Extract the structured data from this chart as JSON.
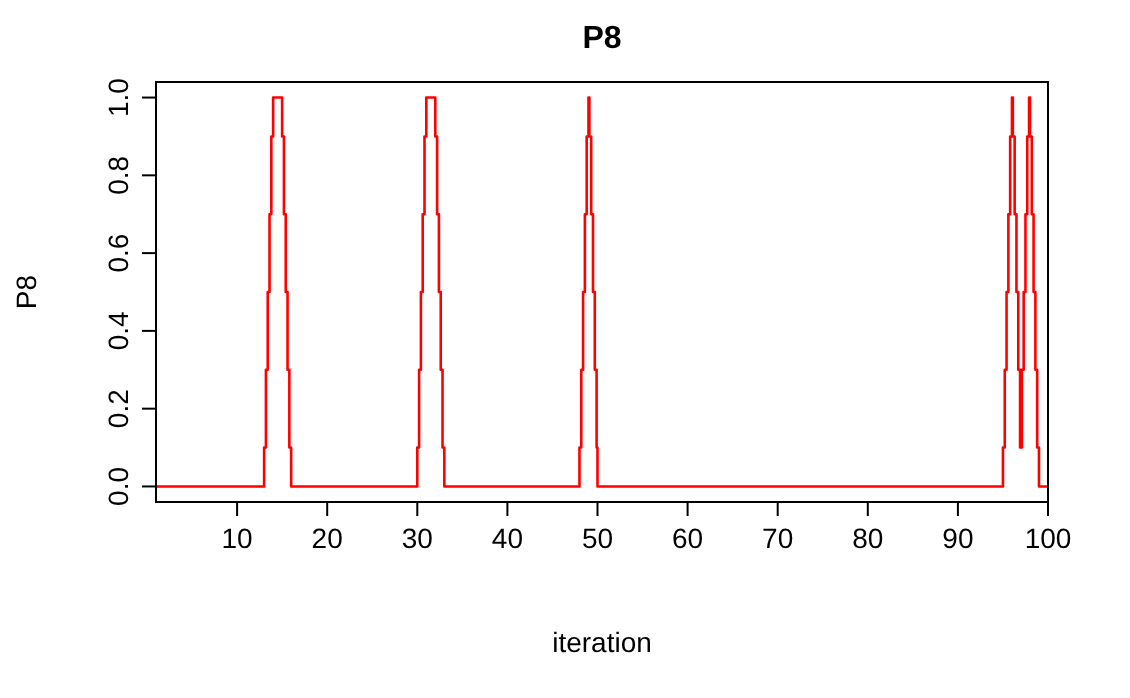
{
  "chart_data": {
    "type": "step",
    "title": "P8",
    "xlabel": "iteration",
    "ylabel": "P8",
    "xlim": [
      1,
      100
    ],
    "ylim": [
      -0.04,
      1.04
    ],
    "xticks": [
      10,
      20,
      30,
      40,
      50,
      60,
      70,
      80,
      90,
      100
    ],
    "yticks": [
      {
        "value": 0,
        "label": "0.0"
      },
      {
        "value": 0.2,
        "label": "0.2"
      },
      {
        "value": 0.4,
        "label": "0.4"
      },
      {
        "value": 0.6,
        "label": "0.6"
      },
      {
        "value": 0.8,
        "label": "0.8"
      },
      {
        "value": 1,
        "label": "1.0"
      }
    ],
    "grid": false,
    "series": [
      {
        "color": "#ff0000",
        "x": [
          1,
          13,
          13.2,
          13.4,
          13.6,
          13.8,
          14,
          15,
          15.2,
          15.4,
          15.6,
          15.8,
          16,
          30,
          30.2,
          30.4,
          30.6,
          30.8,
          31,
          32,
          32.2,
          32.4,
          32.6,
          32.8,
          33,
          48,
          48.2,
          48.4,
          48.6,
          48.8,
          49,
          49.1,
          49.3,
          49.5,
          49.7,
          49.9,
          50,
          95,
          95.2,
          95.4,
          95.6,
          95.8,
          96,
          96.1,
          96.3,
          96.5,
          96.7,
          96.9,
          97.1,
          97.3,
          97.5,
          97.7,
          97.9,
          98,
          98.2,
          98.4,
          98.6,
          98.8,
          99,
          100
        ],
        "values": [
          0,
          0.1,
          0.3,
          0.5,
          0.7,
          0.9,
          1,
          0.9,
          0.7,
          0.5,
          0.3,
          0.1,
          0,
          0.1,
          0.3,
          0.5,
          0.7,
          0.9,
          1,
          0.9,
          0.7,
          0.5,
          0.3,
          0.1,
          0,
          0.1,
          0.3,
          0.5,
          0.7,
          0.9,
          1,
          0.9,
          0.7,
          0.5,
          0.3,
          0.1,
          0,
          0.1,
          0.3,
          0.5,
          0.7,
          0.9,
          1,
          0.9,
          0.7,
          0.5,
          0.3,
          0.1,
          0.3,
          0.5,
          0.7,
          0.9,
          1,
          0.9,
          0.7,
          0.5,
          0.3,
          0.1,
          0,
          0
        ]
      }
    ]
  }
}
